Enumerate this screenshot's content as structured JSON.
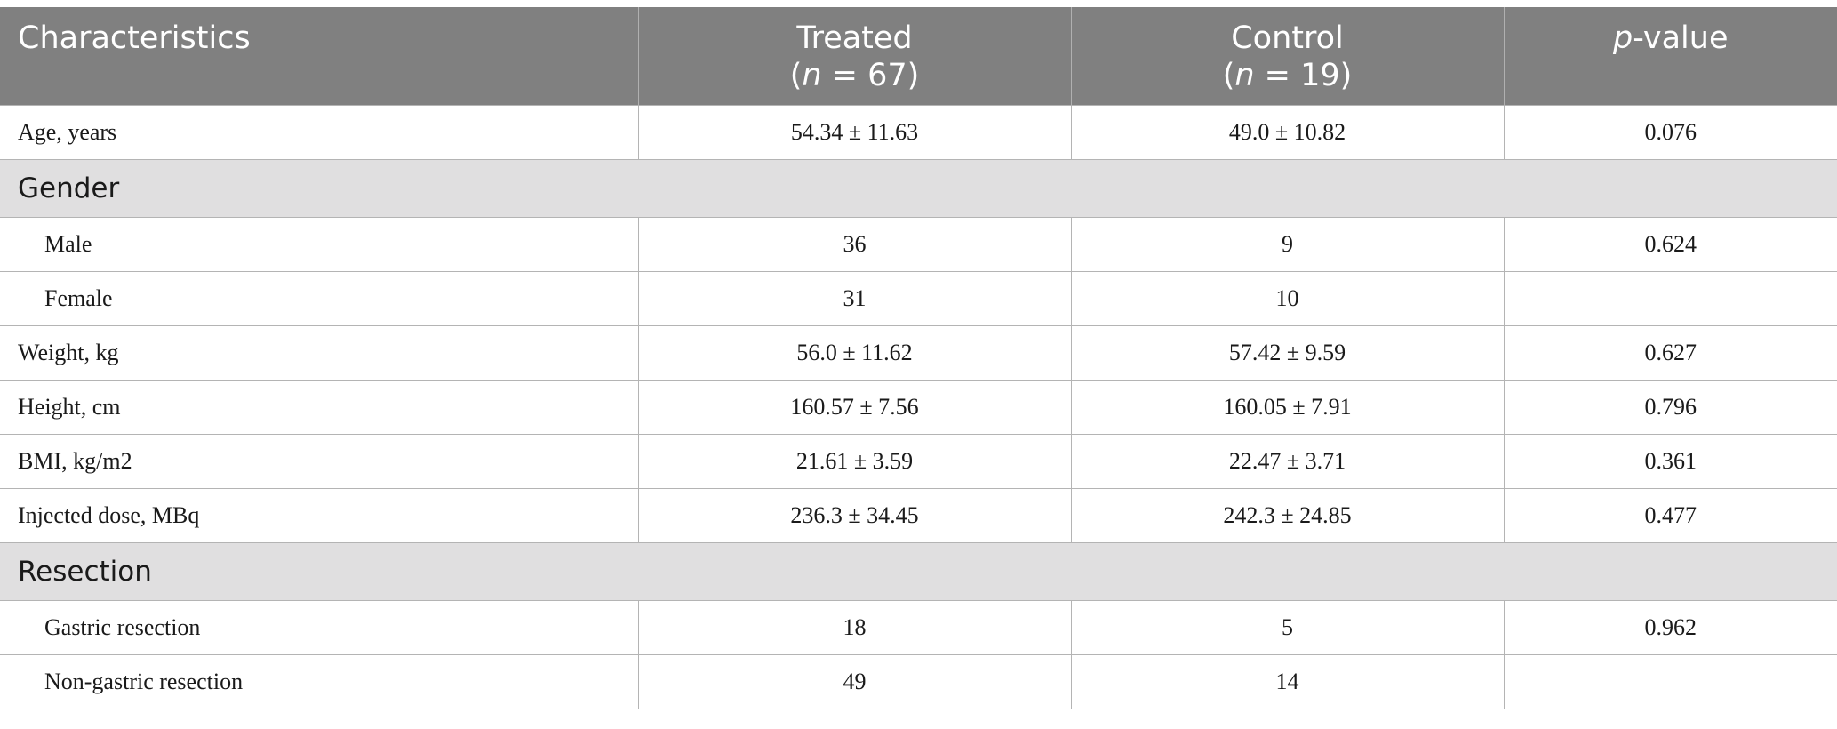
{
  "header": {
    "col1": "Characteristics",
    "col2_line1": "Treated",
    "col2_line2_open": "(",
    "col2_n": "n",
    "col2_line2_rest": " = 67)",
    "col3_line1": "Control",
    "col3_line2_open": "(",
    "col3_n": "n",
    "col3_line2_rest": " = 19)",
    "col4_p": "p",
    "col4_rest": "-value"
  },
  "rows": {
    "age": {
      "label": "Age, years",
      "treated": "54.34 ± 11.63",
      "control": "49.0 ± 10.82",
      "p": "0.076"
    },
    "gender_section": "Gender",
    "male": {
      "label": "Male",
      "treated": "36",
      "control": "9",
      "p": "0.624"
    },
    "female": {
      "label": "Female",
      "treated": "31",
      "control": "10",
      "p": ""
    },
    "weight": {
      "label": "Weight, kg",
      "treated": "56.0 ± 11.62",
      "control": "57.42 ± 9.59",
      "p": "0.627"
    },
    "height": {
      "label": "Height, cm",
      "treated": "160.57 ± 7.56",
      "control": "160.05 ± 7.91",
      "p": "0.796"
    },
    "bmi": {
      "label": "BMI, kg/m2",
      "treated": "21.61 ± 3.59",
      "control": "22.47 ± 3.71",
      "p": "0.361"
    },
    "dose": {
      "label": "Injected dose, MBq",
      "treated": "236.3 ± 34.45",
      "control": "242.3 ± 24.85",
      "p": "0.477"
    },
    "resection_section": "Resection",
    "gastric": {
      "label": "Gastric resection",
      "treated": "18",
      "control": "5",
      "p": "0.962"
    },
    "nongastric": {
      "label": "Non-gastric resection",
      "treated": "49",
      "control": "14",
      "p": ""
    }
  },
  "colors": {
    "header_bg": "#808080",
    "section_bg": "#e0dfe0",
    "border": "#b4b4b4"
  }
}
